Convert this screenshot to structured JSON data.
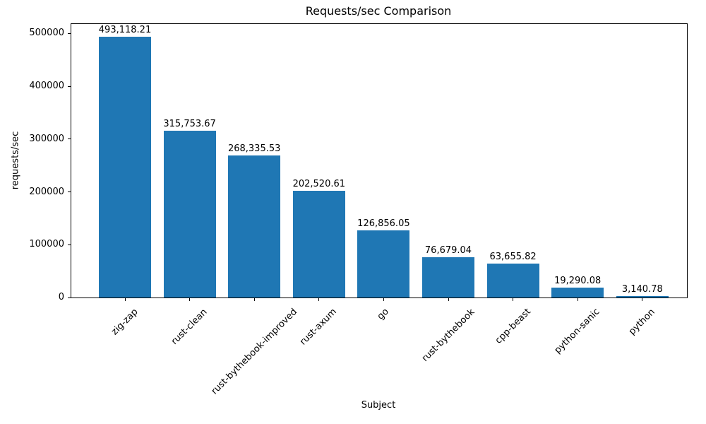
{
  "chart_data": {
    "type": "bar",
    "title": "Requests/sec Comparison",
    "xlabel": "Subject",
    "ylabel": "requests/sec",
    "categories": [
      "zig-zap",
      "rust-clean",
      "rust-bythebook-improved",
      "rust-axum",
      "go",
      "rust-bythebook",
      "cpp-beast",
      "python-sanic",
      "python"
    ],
    "values": [
      493118.21,
      315753.67,
      268335.53,
      202520.61,
      126856.05,
      76679.04,
      63655.82,
      19290.08,
      3140.78
    ],
    "value_labels": [
      "493,118.21",
      "315,753.67",
      "268,335.53",
      "202,520.61",
      "126,856.05",
      "76,679.04",
      "63,655.82",
      "19,290.08",
      "3,140.78"
    ],
    "yticks": {
      "values": [
        0,
        100000,
        200000,
        300000,
        400000,
        500000
      ],
      "labels": [
        "0",
        "100000",
        "200000",
        "300000",
        "400000",
        "500000"
      ]
    },
    "ylim": [
      0,
      517774
    ],
    "xtick_rotation_deg": 45,
    "bar_color": "#1f77b4",
    "text_color": "#000000",
    "grid": false,
    "legend": "none"
  }
}
